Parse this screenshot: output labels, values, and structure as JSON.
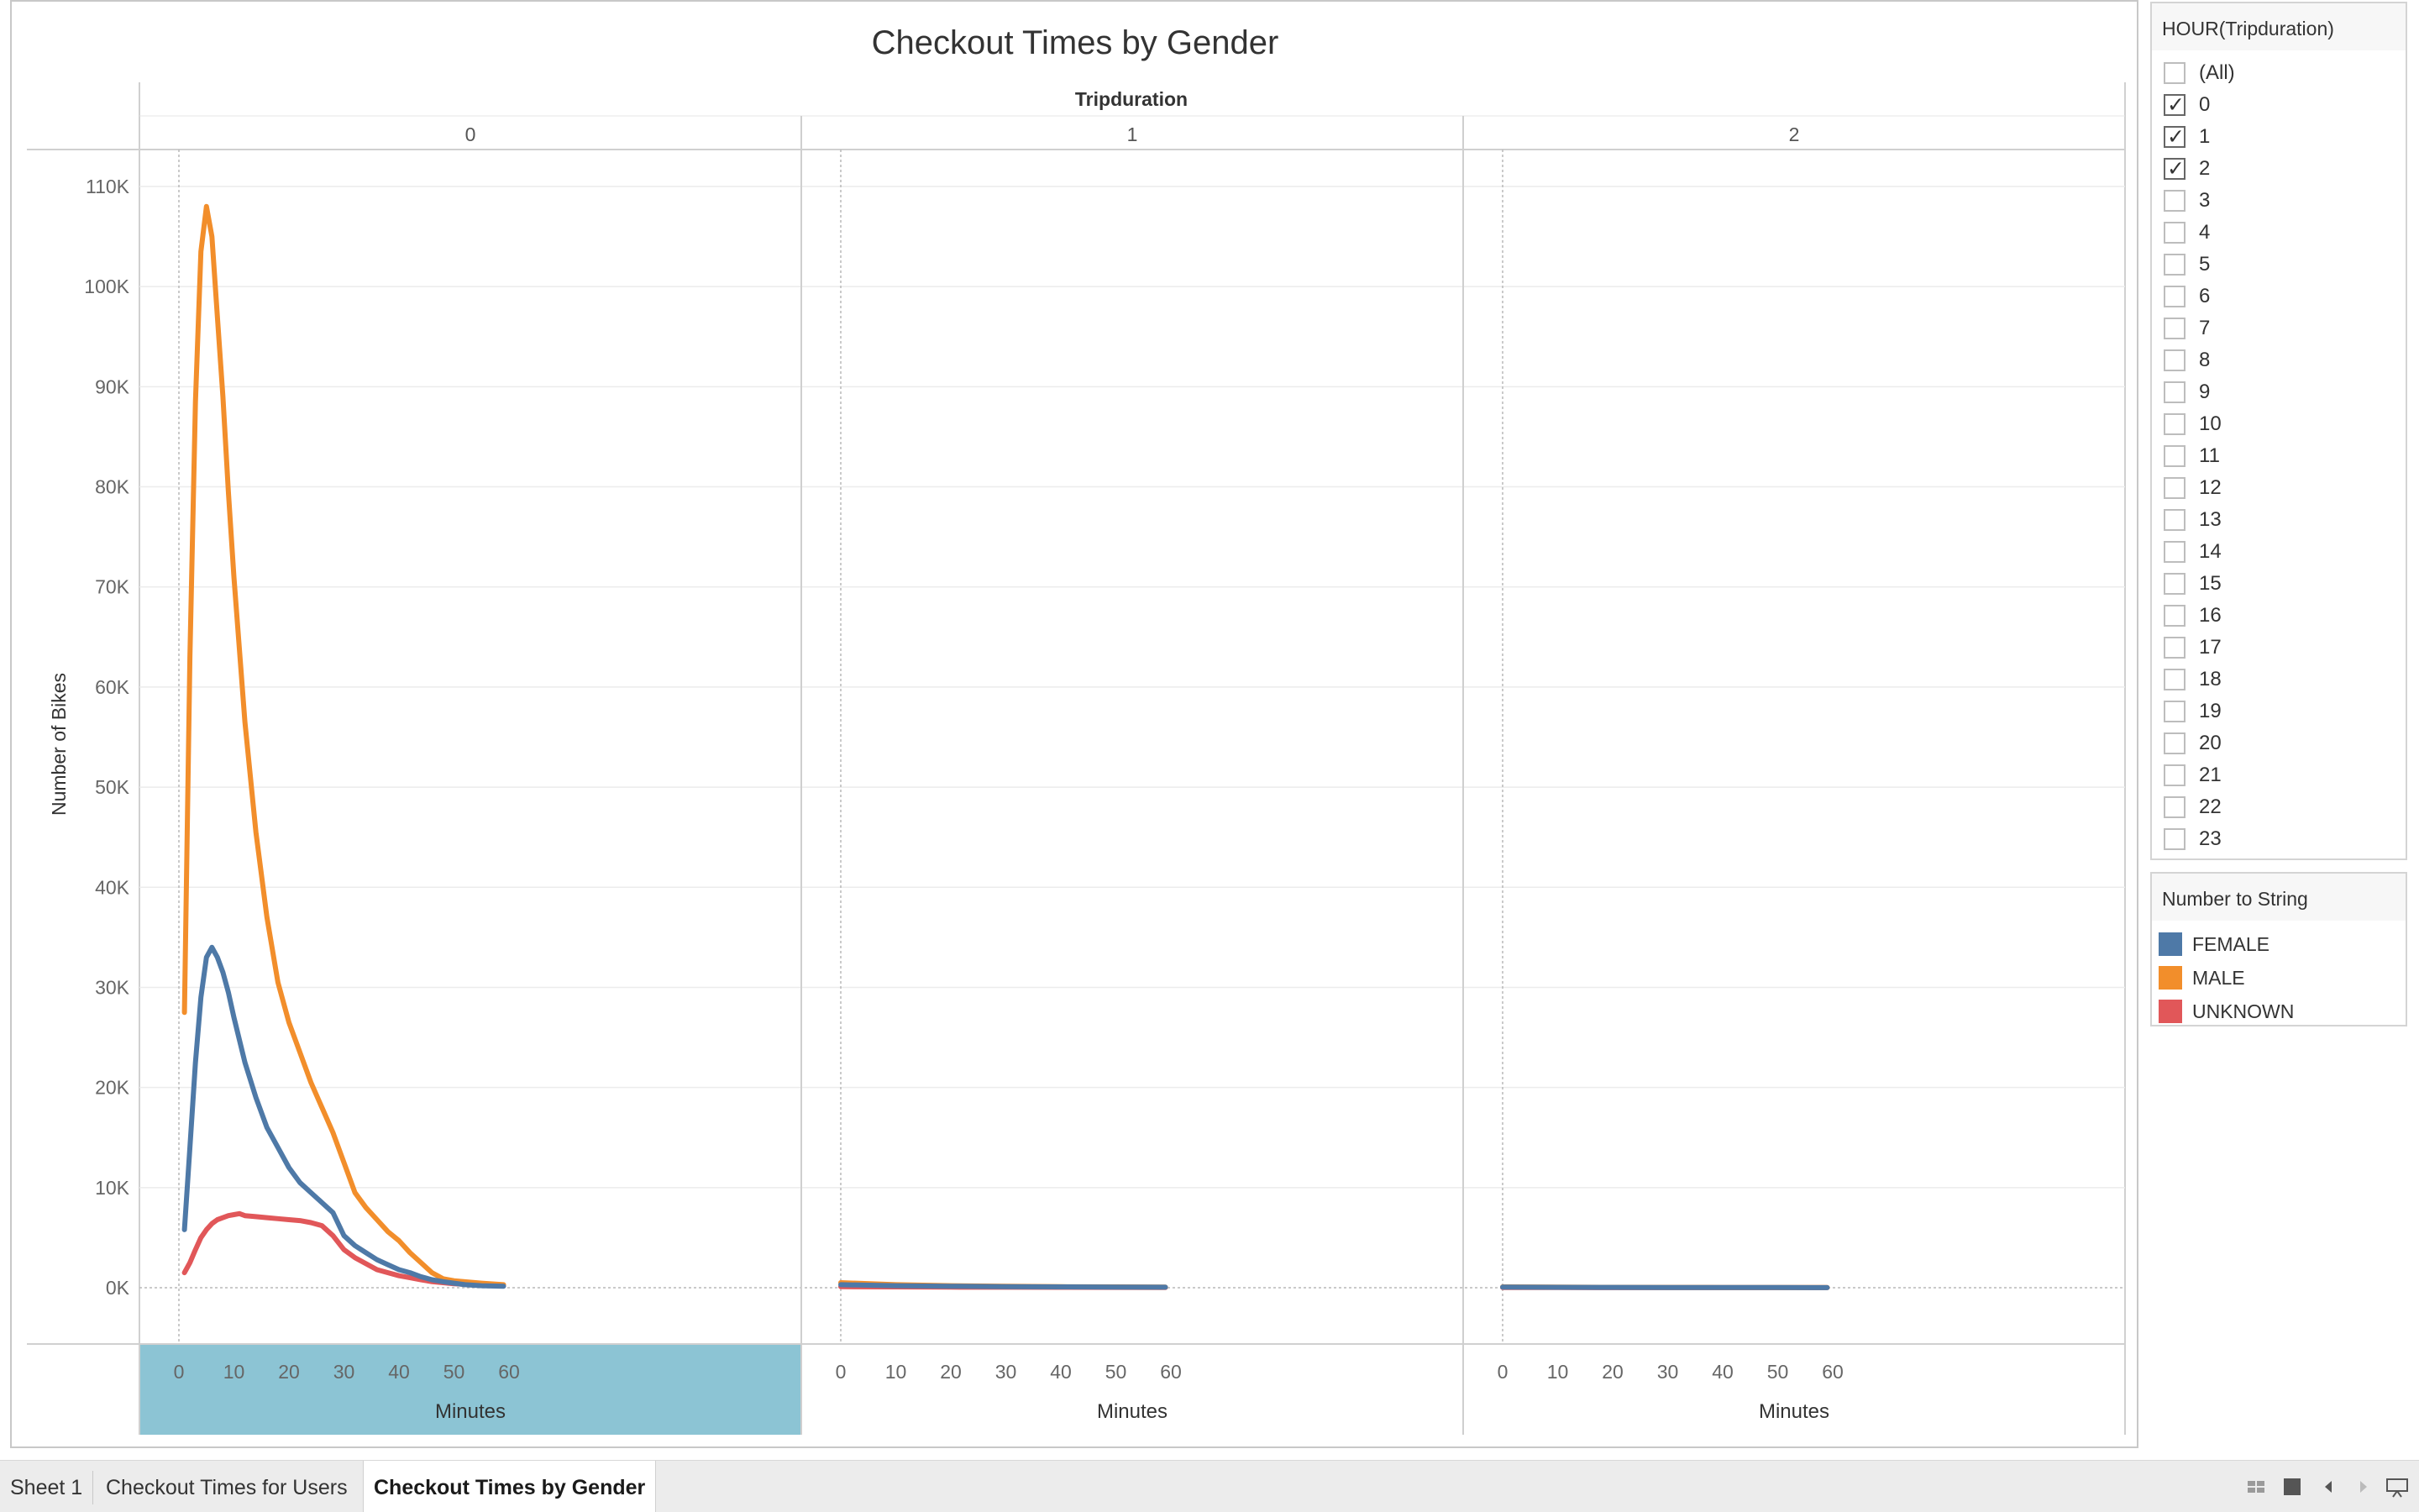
{
  "chart_data": {
    "type": "line",
    "title": "Checkout Times by Gender",
    "column_header": "Tripduration",
    "panels": [
      "0",
      "1",
      "2"
    ],
    "xlabel": "Minutes",
    "ylabel": "Number of Bikes",
    "xlim": [
      0,
      60
    ],
    "ylim": [
      0,
      110000
    ],
    "x_ticks": [
      "0",
      "10",
      "20",
      "30",
      "40",
      "50",
      "60"
    ],
    "y_ticks": [
      "0K",
      "10K",
      "20K",
      "30K",
      "40K",
      "50K",
      "60K",
      "70K",
      "80K",
      "90K",
      "100K",
      "110K"
    ],
    "grid": true,
    "legend_position": "right",
    "series": [
      {
        "name": "FEMALE",
        "color": "#4e79a7",
        "panels": [
          {
            "x": [
              1,
              2,
              3,
              4,
              5,
              6,
              7,
              8,
              9,
              10,
              12,
              14,
              16,
              18,
              20,
              22,
              24,
              26,
              28,
              30,
              32,
              34,
              36,
              38,
              40,
              42,
              44,
              46,
              48,
              50,
              52,
              55,
              59
            ],
            "y": [
              5800,
              14000,
              22500,
              29000,
              33000,
              34000,
              33000,
              31500,
              29500,
              27000,
              22500,
              19000,
              16000,
              14000,
              12000,
              10500,
              9500,
              8500,
              7500,
              5200,
              4200,
              3500,
              2800,
              2300,
              1800,
              1500,
              1100,
              800,
              600,
              450,
              300,
              200,
              150
            ]
          },
          {
            "x": [
              0,
              10,
              20,
              30,
              40,
              50,
              59
            ],
            "y": [
              300,
              200,
              150,
              100,
              80,
              60,
              50
            ]
          },
          {
            "x": [
              0,
              10,
              20,
              30,
              40,
              50,
              59
            ],
            "y": [
              60,
              40,
              30,
              25,
              20,
              15,
              10
            ]
          }
        ]
      },
      {
        "name": "MALE",
        "color": "#f28e2b",
        "panels": [
          {
            "x": [
              1,
              2,
              3,
              4,
              5,
              6,
              7,
              8,
              9,
              10,
              12,
              14,
              16,
              18,
              20,
              22,
              24,
              26,
              28,
              30,
              32,
              34,
              36,
              38,
              40,
              42,
              44,
              46,
              48,
              50,
              55,
              59
            ],
            "y": [
              27500,
              63000,
              88500,
              103500,
              108000,
              105000,
              97000,
              89000,
              79500,
              71000,
              56500,
              45500,
              37000,
              30500,
              26500,
              23500,
              20500,
              18000,
              15500,
              12500,
              9500,
              8000,
              6800,
              5600,
              4700,
              3500,
              2500,
              1500,
              900,
              700,
              450,
              300
            ]
          },
          {
            "x": [
              0,
              10,
              20,
              30,
              40,
              50,
              59
            ],
            "y": [
              500,
              300,
              200,
              150,
              100,
              80,
              60
            ]
          },
          {
            "x": [
              0,
              10,
              20,
              30,
              40,
              50,
              59
            ],
            "y": [
              80,
              60,
              40,
              30,
              25,
              20,
              15
            ]
          }
        ]
      },
      {
        "name": "UNKNOWN",
        "color": "#e15759",
        "panels": [
          {
            "x": [
              1,
              2,
              3,
              4,
              5,
              6,
              7,
              8,
              9,
              10,
              11,
              12,
              14,
              16,
              18,
              20,
              22,
              24,
              26,
              28,
              30,
              32,
              34,
              36,
              38,
              40,
              42,
              44,
              46,
              48,
              50,
              55,
              59
            ],
            "y": [
              1500,
              2500,
              3800,
              5000,
              5800,
              6400,
              6800,
              7000,
              7200,
              7300,
              7400,
              7200,
              7100,
              7000,
              6900,
              6800,
              6700,
              6500,
              6200,
              5200,
              3800,
              3000,
              2400,
              1800,
              1500,
              1200,
              1000,
              800,
              600,
              500,
              400,
              250,
              200
            ]
          },
          {
            "x": [
              0,
              10,
              20,
              30,
              40,
              50,
              59
            ],
            "y": [
              100,
              80,
              60,
              50,
              40,
              30,
              20
            ]
          },
          {
            "x": [
              0,
              10,
              20,
              30,
              40,
              50,
              59
            ],
            "y": [
              20,
              15,
              10,
              10,
              8,
              6,
              5
            ]
          }
        ]
      }
    ]
  },
  "filter": {
    "title": "HOUR(Tripduration)",
    "items": [
      {
        "label": "(All)",
        "checked": false
      },
      {
        "label": "0",
        "checked": true
      },
      {
        "label": "1",
        "checked": true
      },
      {
        "label": "2",
        "checked": true
      },
      {
        "label": "3",
        "checked": false
      },
      {
        "label": "4",
        "checked": false
      },
      {
        "label": "5",
        "checked": false
      },
      {
        "label": "6",
        "checked": false
      },
      {
        "label": "7",
        "checked": false
      },
      {
        "label": "8",
        "checked": false
      },
      {
        "label": "9",
        "checked": false
      },
      {
        "label": "10",
        "checked": false
      },
      {
        "label": "11",
        "checked": false
      },
      {
        "label": "12",
        "checked": false
      },
      {
        "label": "13",
        "checked": false
      },
      {
        "label": "14",
        "checked": false
      },
      {
        "label": "15",
        "checked": false
      },
      {
        "label": "16",
        "checked": false
      },
      {
        "label": "17",
        "checked": false
      },
      {
        "label": "18",
        "checked": false
      },
      {
        "label": "19",
        "checked": false
      },
      {
        "label": "20",
        "checked": false
      },
      {
        "label": "21",
        "checked": false
      },
      {
        "label": "22",
        "checked": false
      },
      {
        "label": "23",
        "checked": false
      }
    ]
  },
  "legend": {
    "title": "Number to String",
    "items": [
      {
        "label": "FEMALE",
        "color": "#4e79a7"
      },
      {
        "label": "MALE",
        "color": "#f28e2b"
      },
      {
        "label": "UNKNOWN",
        "color": "#e15759"
      }
    ]
  },
  "tabs": [
    {
      "label": "Sheet 1",
      "active": false
    },
    {
      "label": "Checkout Times for Users",
      "active": false
    },
    {
      "label": "Checkout Times by Gender",
      "active": true
    }
  ],
  "colors": {
    "highlight_panel": "#8cc4d4",
    "gridline": "#ececec"
  },
  "icons": [
    "show-sheets-grid-icon",
    "show-sheets-filmstrip-icon",
    "scroll-left-icon",
    "scroll-right-icon",
    "presentation-mode-icon"
  ]
}
